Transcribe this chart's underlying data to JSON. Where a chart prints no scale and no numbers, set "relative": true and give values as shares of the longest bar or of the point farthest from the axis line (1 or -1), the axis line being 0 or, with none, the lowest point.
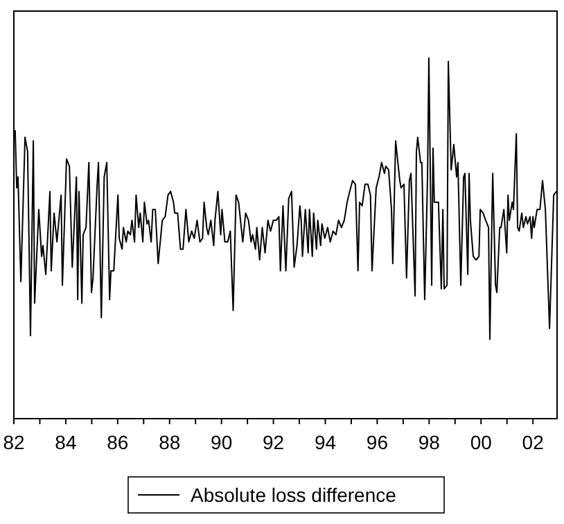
{
  "chart_data": {
    "type": "line",
    "relative": true,
    "legend": "bottom",
    "grid": false,
    "marker": "none",
    "line_style": "solid",
    "xlim": [
      1982,
      2002.93
    ],
    "xticks": [
      {
        "value": 1982,
        "label": "82"
      },
      {
        "value": 1983,
        "label": null
      },
      {
        "value": 1984,
        "label": "84"
      },
      {
        "value": 1985,
        "label": null
      },
      {
        "value": 1986,
        "label": "86"
      },
      {
        "value": 1987,
        "label": null
      },
      {
        "value": 1988,
        "label": "88"
      },
      {
        "value": 1989,
        "label": null
      },
      {
        "value": 1990,
        "label": "90"
      },
      {
        "value": 1991,
        "label": null
      },
      {
        "value": 1992,
        "label": "92"
      },
      {
        "value": 1993,
        "label": null
      },
      {
        "value": 1994,
        "label": "94"
      },
      {
        "value": 1995,
        "label": null
      },
      {
        "value": 1996,
        "label": "96"
      },
      {
        "value": 1997,
        "label": null
      },
      {
        "value": 1998,
        "label": "98"
      },
      {
        "value": 1999,
        "label": null
      },
      {
        "value": 2000,
        "label": "00"
      },
      {
        "value": 2001,
        "label": null
      },
      {
        "value": 2002,
        "label": "02"
      }
    ],
    "x": [
      1982.05,
      1982.11,
      1982.16,
      1982.27,
      1982.43,
      1982.53,
      1982.64,
      1982.75,
      1982.8,
      1982.96,
      1983.07,
      1983.12,
      1983.23,
      1983.39,
      1983.44,
      1983.55,
      1983.66,
      1983.71,
      1983.82,
      1983.87,
      1984.03,
      1984.14,
      1984.25,
      1984.41,
      1984.46,
      1984.51,
      1984.62,
      1984.67,
      1984.78,
      1984.89,
      1984.99,
      1985.05,
      1985.21,
      1985.26,
      1985.37,
      1985.48,
      1985.58,
      1985.69,
      1985.74,
      1985.85,
      1986.01,
      1986.06,
      1986.17,
      1986.22,
      1986.33,
      1986.39,
      1986.49,
      1986.55,
      1986.65,
      1986.71,
      1986.81,
      1986.87,
      1986.97,
      1987.03,
      1987.13,
      1987.19,
      1987.29,
      1987.35,
      1987.45,
      1987.56,
      1987.72,
      1987.83,
      1987.94,
      1988.04,
      1988.15,
      1988.2,
      1988.31,
      1988.42,
      1988.52,
      1988.63,
      1988.74,
      1988.85,
      1988.95,
      1989.06,
      1989.17,
      1989.27,
      1989.33,
      1989.43,
      1989.49,
      1989.59,
      1989.7,
      1989.75,
      1989.86,
      1989.97,
      1990.02,
      1990.13,
      1990.24,
      1990.34,
      1990.45,
      1990.56,
      1990.66,
      1990.82,
      1990.93,
      1991.04,
      1991.14,
      1991.2,
      1991.31,
      1991.36,
      1991.47,
      1991.57,
      1991.68,
      1991.79,
      1991.89,
      1992.0,
      1992.11,
      1992.21,
      1992.27,
      1992.37,
      1992.48,
      1992.59,
      1992.7,
      1992.8,
      1992.91,
      1993.02,
      1993.07,
      1993.12,
      1993.23,
      1993.34,
      1993.39,
      1993.5,
      1993.55,
      1993.66,
      1993.71,
      1993.82,
      1993.87,
      1993.98,
      1994.09,
      1994.19,
      1994.3,
      1994.41,
      1994.51,
      1994.62,
      1994.73,
      1994.84,
      1994.94,
      1995.05,
      1995.16,
      1995.26,
      1995.32,
      1995.42,
      1995.53,
      1995.64,
      1995.74,
      1995.8,
      1995.96,
      1996.07,
      1996.17,
      1996.28,
      1996.33,
      1996.44,
      1996.55,
      1996.6,
      1996.71,
      1996.87,
      1996.92,
      1997.03,
      1997.13,
      1997.24,
      1997.3,
      1997.46,
      1997.51,
      1997.56,
      1997.67,
      1997.72,
      1997.83,
      1997.94,
      1997.99,
      1998.1,
      1998.15,
      1998.2,
      1998.31,
      1998.36,
      1998.47,
      1998.53,
      1998.58,
      1998.69,
      1998.74,
      1998.85,
      1998.95,
      1999.06,
      1999.11,
      1999.22,
      1999.33,
      1999.38,
      1999.49,
      1999.54,
      1999.59,
      1999.7,
      1999.81,
      1999.92,
      1999.97,
      2000.08,
      2000.18,
      2000.29,
      2000.34,
      2000.45,
      2000.56,
      2000.61,
      2000.72,
      2000.77,
      2000.88,
      2000.99,
      2001.04,
      2001.09,
      2001.2,
      2001.25,
      2001.36,
      2001.41,
      2001.47,
      2001.57,
      2001.63,
      2001.73,
      2001.79,
      2001.89,
      2001.95,
      2002.0,
      2002.05,
      2002.16,
      2002.27,
      2002.37,
      2002.48,
      2002.64,
      2002.8,
      2002.91
    ],
    "series": [
      {
        "name": "Absolute loss difference",
        "color": "#000000",
        "values": [
          0.8,
          0.64,
          0.67,
          0.38,
          0.78,
          0.74,
          0.23,
          0.77,
          0.32,
          0.58,
          0.45,
          0.48,
          0.4,
          0.63,
          0.41,
          0.57,
          0.49,
          0.53,
          0.62,
          0.37,
          0.72,
          0.7,
          0.42,
          0.67,
          0.33,
          0.63,
          0.32,
          0.51,
          0.53,
          0.71,
          0.35,
          0.39,
          0.65,
          0.71,
          0.28,
          0.67,
          0.71,
          0.33,
          0.41,
          0.41,
          0.62,
          0.5,
          0.47,
          0.53,
          0.49,
          0.52,
          0.51,
          0.55,
          0.49,
          0.62,
          0.53,
          0.57,
          0.49,
          0.6,
          0.54,
          0.55,
          0.49,
          0.58,
          0.58,
          0.43,
          0.55,
          0.56,
          0.62,
          0.63,
          0.6,
          0.57,
          0.57,
          0.47,
          0.47,
          0.58,
          0.49,
          0.52,
          0.5,
          0.55,
          0.49,
          0.5,
          0.6,
          0.53,
          0.51,
          0.55,
          0.48,
          0.55,
          0.63,
          0.51,
          0.58,
          0.49,
          0.49,
          0.52,
          0.3,
          0.62,
          0.6,
          0.49,
          0.57,
          0.55,
          0.49,
          0.51,
          0.47,
          0.53,
          0.44,
          0.53,
          0.46,
          0.55,
          0.52,
          0.55,
          0.55,
          0.56,
          0.41,
          0.59,
          0.41,
          0.61,
          0.63,
          0.42,
          0.48,
          0.59,
          0.55,
          0.45,
          0.58,
          0.46,
          0.58,
          0.45,
          0.57,
          0.47,
          0.55,
          0.48,
          0.54,
          0.5,
          0.53,
          0.49,
          0.52,
          0.51,
          0.55,
          0.53,
          0.55,
          0.6,
          0.63,
          0.66,
          0.65,
          0.41,
          0.6,
          0.59,
          0.65,
          0.65,
          0.62,
          0.41,
          0.64,
          0.67,
          0.71,
          0.68,
          0.7,
          0.69,
          0.58,
          0.43,
          0.77,
          0.66,
          0.64,
          0.65,
          0.39,
          0.66,
          0.68,
          0.34,
          0.74,
          0.78,
          0.71,
          0.71,
          0.33,
          0.67,
          1.0,
          0.37,
          0.75,
          0.6,
          0.6,
          0.6,
          0.36,
          0.58,
          0.36,
          0.37,
          0.99,
          0.69,
          0.76,
          0.67,
          0.71,
          0.37,
          0.67,
          0.68,
          0.4,
          0.68,
          0.55,
          0.45,
          0.44,
          0.45,
          0.58,
          0.57,
          0.55,
          0.53,
          0.22,
          0.68,
          0.37,
          0.35,
          0.53,
          0.53,
          0.58,
          0.46,
          0.62,
          0.55,
          0.6,
          0.58,
          0.79,
          0.53,
          0.52,
          0.57,
          0.53,
          0.56,
          0.54,
          0.56,
          0.5,
          0.56,
          0.53,
          0.58,
          0.58,
          0.66,
          0.58,
          0.25,
          0.62,
          0.63
        ]
      }
    ]
  }
}
